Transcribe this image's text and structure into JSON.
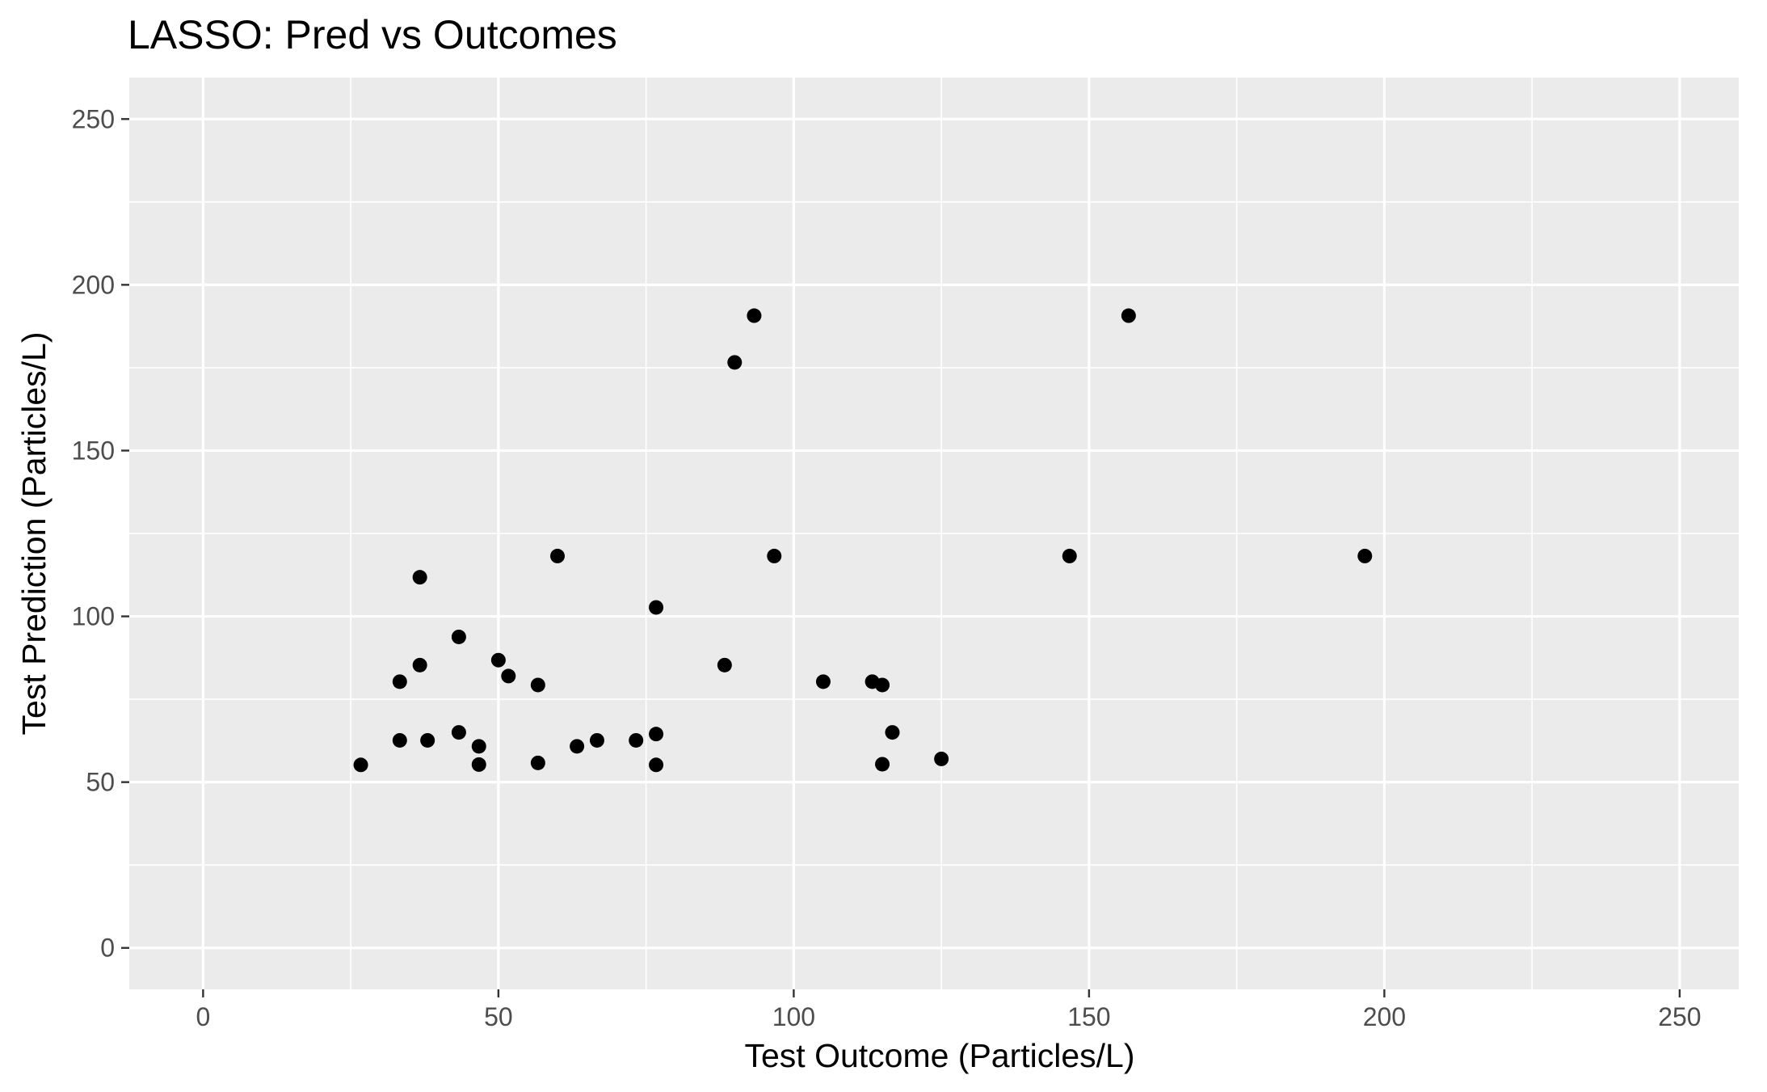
{
  "chart_data": {
    "type": "scatter",
    "title": "LASSO: Pred vs Outcomes",
    "xlabel": "Test Outcome (Particles/L)",
    "ylabel": "Test Prediction (Particles/L)",
    "xlim": [
      -12.5,
      260
    ],
    "ylim": [
      -12.5,
      262.5
    ],
    "x_ticks": [
      0,
      50,
      100,
      150,
      200,
      250
    ],
    "y_ticks": [
      0,
      50,
      100,
      150,
      200,
      250
    ],
    "x_tick_labels": [
      "0",
      "50",
      "100",
      "150",
      "200",
      "250"
    ],
    "y_tick_labels": [
      "0",
      "50",
      "100",
      "150",
      "200",
      "250"
    ],
    "x_minor": [
      25,
      75,
      125,
      175,
      225
    ],
    "y_minor": [
      25,
      75,
      125,
      175,
      225
    ],
    "grid": true,
    "point_color": "#000000",
    "panel_color": "#ebebeb",
    "points": [
      {
        "x": 26.7,
        "y": 55.2
      },
      {
        "x": 33.3,
        "y": 80.3
      },
      {
        "x": 33.3,
        "y": 62.6
      },
      {
        "x": 36.7,
        "y": 111.8
      },
      {
        "x": 36.7,
        "y": 85.3
      },
      {
        "x": 38.0,
        "y": 62.6
      },
      {
        "x": 43.3,
        "y": 93.8
      },
      {
        "x": 43.3,
        "y": 65.0
      },
      {
        "x": 46.7,
        "y": 60.8
      },
      {
        "x": 46.7,
        "y": 55.3
      },
      {
        "x": 50.0,
        "y": 86.8
      },
      {
        "x": 51.7,
        "y": 82.0
      },
      {
        "x": 56.7,
        "y": 79.3
      },
      {
        "x": 56.7,
        "y": 55.8
      },
      {
        "x": 60.0,
        "y": 118.2
      },
      {
        "x": 63.3,
        "y": 60.8
      },
      {
        "x": 66.7,
        "y": 62.6
      },
      {
        "x": 73.3,
        "y": 62.6
      },
      {
        "x": 76.7,
        "y": 102.7
      },
      {
        "x": 76.7,
        "y": 64.5
      },
      {
        "x": 76.7,
        "y": 55.2
      },
      {
        "x": 88.3,
        "y": 85.3
      },
      {
        "x": 90.0,
        "y": 176.6
      },
      {
        "x": 93.3,
        "y": 190.7
      },
      {
        "x": 96.7,
        "y": 118.2
      },
      {
        "x": 105.0,
        "y": 80.3
      },
      {
        "x": 113.3,
        "y": 80.3
      },
      {
        "x": 115.0,
        "y": 79.3
      },
      {
        "x": 115.0,
        "y": 55.4
      },
      {
        "x": 116.7,
        "y": 65.0
      },
      {
        "x": 125.0,
        "y": 57.0
      },
      {
        "x": 146.7,
        "y": 118.2
      },
      {
        "x": 156.7,
        "y": 190.7
      },
      {
        "x": 196.7,
        "y": 118.2
      }
    ]
  }
}
